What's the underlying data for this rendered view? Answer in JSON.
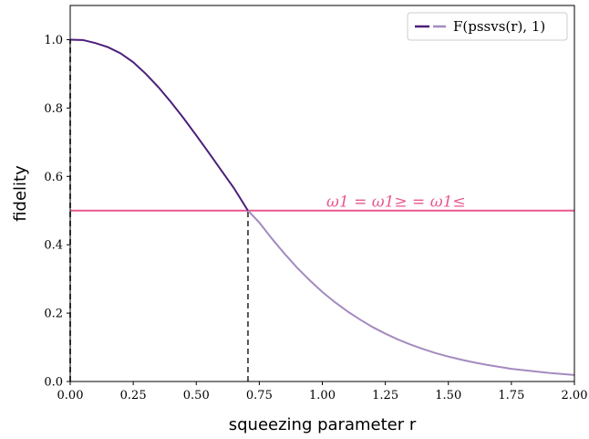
{
  "chart_data": {
    "type": "line",
    "xlabel": "squeezing parameter r",
    "ylabel": "fidelity",
    "xlim": [
      0.0,
      2.0
    ],
    "ylim": [
      0.0,
      1.1
    ],
    "x_ticks": [
      "0.00",
      "0.25",
      "0.50",
      "0.75",
      "1.00",
      "1.25",
      "1.50",
      "1.75",
      "2.00"
    ],
    "y_ticks": [
      "0.0",
      "0.2",
      "0.4",
      "0.6",
      "0.8",
      "1.0"
    ],
    "legend": {
      "placement": "top-right",
      "label": "F(pssvs(r), 1)"
    },
    "series": [
      {
        "name": "F(pssvs(r), 1)",
        "segment_colors": [
          "#4a1f7a",
          "#a48bbf"
        ],
        "switch_at_x": 0.705,
        "x": [
          0.0,
          0.05,
          0.1,
          0.15,
          0.2,
          0.25,
          0.3,
          0.35,
          0.4,
          0.45,
          0.5,
          0.55,
          0.6,
          0.65,
          0.705,
          0.75,
          0.8,
          0.85,
          0.9,
          0.95,
          1.0,
          1.05,
          1.1,
          1.15,
          1.2,
          1.25,
          1.3,
          1.35,
          1.4,
          1.45,
          1.5,
          1.55,
          1.6,
          1.65,
          1.7,
          1.75,
          1.8,
          1.85,
          1.9,
          1.95,
          2.0
        ],
        "y": [
          1.0,
          0.999,
          0.99,
          0.978,
          0.96,
          0.934,
          0.9,
          0.861,
          0.817,
          0.77,
          0.72,
          0.669,
          0.617,
          0.565,
          0.5,
          0.465,
          0.418,
          0.374,
          0.333,
          0.296,
          0.262,
          0.232,
          0.205,
          0.181,
          0.159,
          0.14,
          0.123,
          0.108,
          0.095,
          0.083,
          0.073,
          0.064,
          0.056,
          0.049,
          0.043,
          0.037,
          0.033,
          0.029,
          0.025,
          0.022,
          0.019
        ]
      }
    ],
    "hline": {
      "y": 0.5,
      "color": "#e8588f",
      "label": "ω1 = ω1≥ = ω1≤"
    },
    "vlines": [
      {
        "x": 0.0,
        "ymax": 1.0,
        "color": "#555555"
      },
      {
        "x": 0.705,
        "ymax": 0.5,
        "color": "#555555"
      }
    ],
    "grid": false
  }
}
